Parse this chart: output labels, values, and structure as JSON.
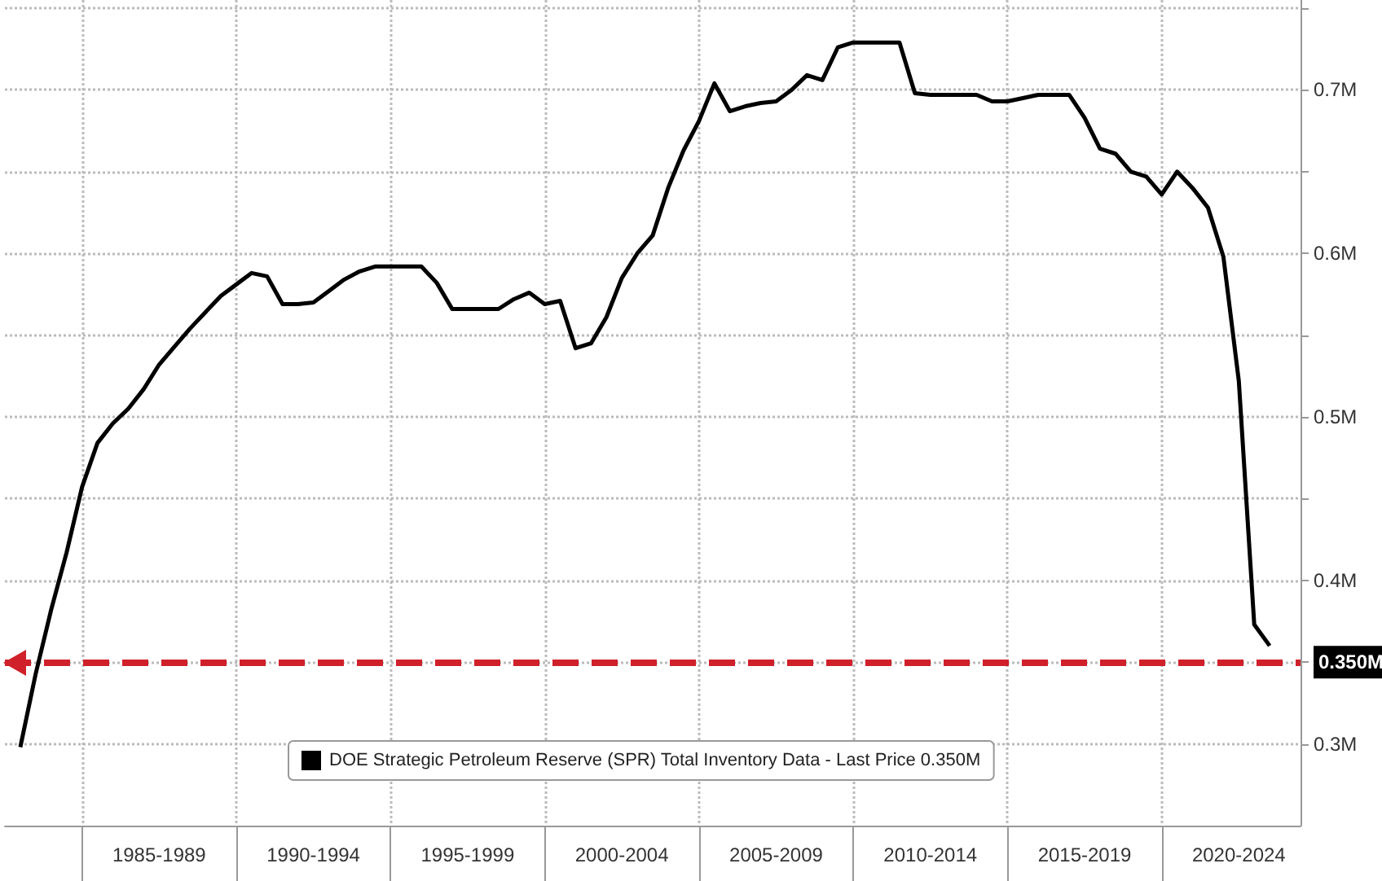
{
  "chart_data": {
    "type": "line",
    "categories": [
      null,
      null,
      null,
      null,
      null,
      null,
      null,
      null,
      null,
      null,
      "1985-1989",
      null,
      null,
      null,
      null,
      null,
      null,
      null,
      null,
      null,
      "1990-1994",
      null,
      null,
      null,
      null,
      null,
      null,
      null,
      null,
      null,
      "1995-1999",
      null,
      null,
      null,
      null,
      null,
      null,
      null,
      null,
      null,
      "2000-2004",
      null,
      null,
      null,
      null,
      null,
      null,
      null,
      null,
      null,
      "2005-2009",
      null,
      null,
      null,
      null,
      null,
      null,
      null,
      null,
      null,
      "2010-2014",
      null,
      null,
      null,
      null,
      null,
      null,
      null,
      null,
      null,
      "2015-2019",
      null,
      null,
      null,
      null,
      null,
      null,
      null,
      null,
      null,
      "2020-2024",
      null,
      null,
      null,
      null
    ],
    "series": [
      {
        "name": "DOE Strategic Petroleum Reserve (SPR) Total Inventory Data - Last Price 0.350M",
        "color": "#000000",
        "values": [
          null,
          0.298,
          0.343,
          0.382,
          0.417,
          0.457,
          0.484,
          0.496,
          0.505,
          0.517,
          0.532,
          0.543,
          0.554,
          0.564,
          0.574,
          0.581,
          0.588,
          0.586,
          0.569,
          0.569,
          0.57,
          0.577,
          0.584,
          0.589,
          0.592,
          0.592,
          0.592,
          0.592,
          0.582,
          0.566,
          0.566,
          0.566,
          0.566,
          0.572,
          0.576,
          0.569,
          0.571,
          0.542,
          0.545,
          0.561,
          0.585,
          0.6,
          0.611,
          0.64,
          0.663,
          0.681,
          0.704,
          0.687,
          0.69,
          0.692,
          0.693,
          0.7,
          0.709,
          0.706,
          0.726,
          0.729,
          0.729,
          0.729,
          0.729,
          0.698,
          0.697,
          0.697,
          0.697,
          0.697,
          0.693,
          0.693,
          0.695,
          0.697,
          0.697,
          0.697,
          0.683,
          0.664,
          0.661,
          0.65,
          0.647,
          0.636,
          0.65,
          0.64,
          0.628,
          0.598,
          0.522,
          0.373,
          0.36,
          null,
          null
        ]
      }
    ],
    "ylim": [
      0.25,
      0.755
    ],
    "yticks": [
      {
        "value": 0.3,
        "label": "0.3M"
      },
      {
        "value": 0.35,
        "label": null
      },
      {
        "value": 0.4,
        "label": "0.4M"
      },
      {
        "value": 0.45,
        "label": null
      },
      {
        "value": 0.5,
        "label": "0.5M"
      },
      {
        "value": 0.55,
        "label": null
      },
      {
        "value": 0.6,
        "label": "0.6M"
      },
      {
        "value": 0.65,
        "label": null
      },
      {
        "value": 0.7,
        "label": "0.7M"
      },
      {
        "value": 0.75,
        "label": null
      }
    ],
    "ref_lines": [
      {
        "axis": "y",
        "value": 0.35,
        "label": "0.350M",
        "color": "#d0202a",
        "line_style": "dashed"
      }
    ],
    "grid": true,
    "legend": "bottom",
    "marker": "none",
    "line_style": "solid"
  }
}
